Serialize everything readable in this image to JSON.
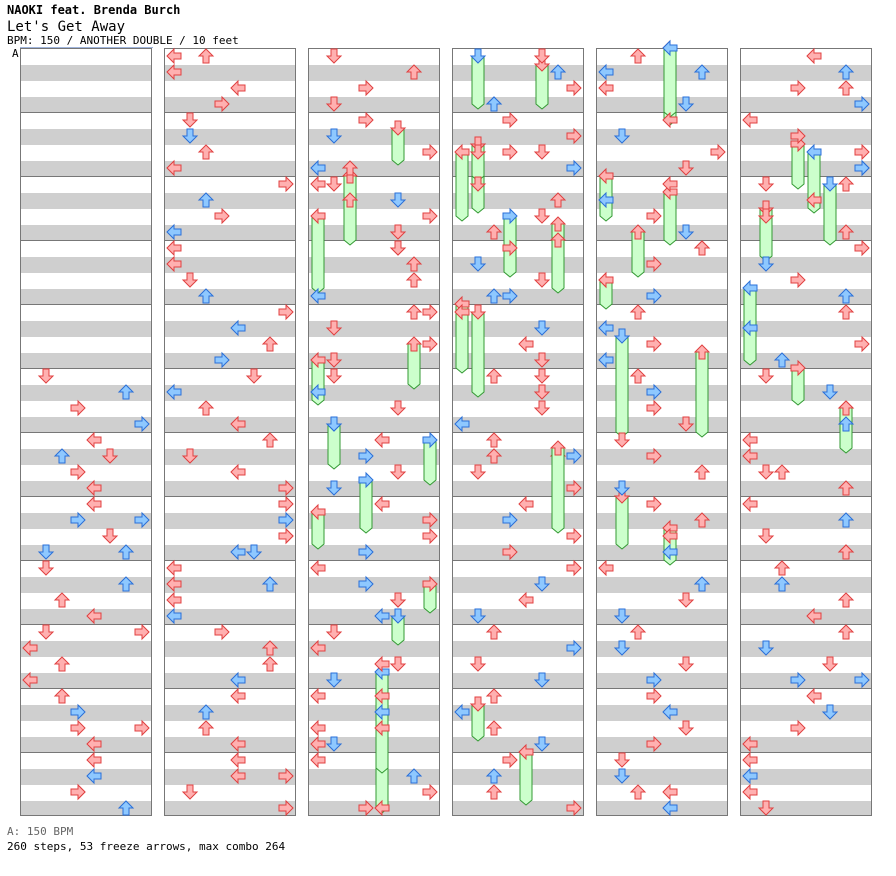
{
  "header": {
    "artist": "NAOKI feat. Brenda Burch",
    "title": "Let's Get Away",
    "meta": "BPM: 150 / ANOTHER DOUBLE / 10 feet",
    "section_marker": "A"
  },
  "footer": {
    "bpm": "A: 150 BPM",
    "stats": "260 steps, 53 freeze arrows, max combo 264"
  },
  "colors": {
    "band": "#cfcfcf",
    "red_fill": "#ffb0b0",
    "red_stroke": "#e04040",
    "blue_fill": "#8ec8ff",
    "blue_stroke": "#2a6fd8",
    "freeze_fill": "#ccffcc",
    "freeze_stroke": "#339933"
  },
  "chart": {
    "columns": 6,
    "measures_per_column": 12,
    "lanes": [
      "left",
      "down",
      "up",
      "right",
      "left",
      "down",
      "up",
      "right"
    ],
    "freeze_arrows": [
      [
        2,
        39,
        47
      ],
      [
        2,
        40.5,
        47.5
      ],
      [
        2,
        50.5,
        53
      ],
      [
        2,
        52,
        55
      ],
      [
        2,
        18.5,
        21
      ],
      [
        2,
        19.5,
        22
      ],
      [
        2,
        23.5,
        26
      ],
      [
        2,
        24.5,
        27
      ],
      [
        2,
        27,
        30
      ],
      [
        2,
        29,
        31
      ],
      [
        2,
        33.5,
        35
      ],
      [
        2,
        35.5,
        37
      ],
      [
        2,
        42.5,
        45
      ],
      [
        3,
        6,
        10
      ],
      [
        3,
        6.5,
        10.5
      ],
      [
        3,
        0.5,
        3.5
      ],
      [
        3,
        1,
        3.5
      ],
      [
        3,
        11,
        14
      ],
      [
        3,
        12,
        15
      ],
      [
        3,
        16,
        20
      ],
      [
        3,
        16.5,
        21.5
      ],
      [
        3,
        10.5,
        14
      ],
      [
        3,
        25.5,
        28
      ],
      [
        3,
        25,
        30
      ],
      [
        3,
        41,
        43
      ],
      [
        3,
        44,
        47
      ],
      [
        3,
        56.5,
        59
      ],
      [
        3,
        58,
        60
      ],
      [
        3,
        65,
        68
      ],
      [
        3,
        71,
        73
      ],
      [
        3,
        75,
        77
      ],
      [
        4,
        0,
        4.5
      ],
      [
        4,
        0,
        4
      ],
      [
        4,
        8,
        10.5
      ],
      [
        4,
        9,
        12
      ],
      [
        4,
        11.5,
        14
      ],
      [
        4,
        14.5,
        16
      ],
      [
        4,
        18,
        24
      ],
      [
        4,
        19,
        24
      ],
      [
        4,
        30,
        32
      ],
      [
        4,
        28,
        31
      ],
      [
        5,
        6,
        8.5
      ],
      [
        5,
        8.5,
        12
      ],
      [
        5,
        10,
        13
      ],
      [
        5,
        15,
        19.5
      ],
      [
        5,
        22.5,
        25
      ],
      [
        5,
        20,
        22
      ],
      [
        5,
        6.5,
        10
      ],
      [
        2,
        8,
        10.5
      ],
      [
        2,
        9.5,
        12
      ],
      [
        2,
        10.5,
        15
      ],
      [
        2,
        5,
        7
      ],
      [
        3,
        6.5,
        8
      ]
    ]
  }
}
